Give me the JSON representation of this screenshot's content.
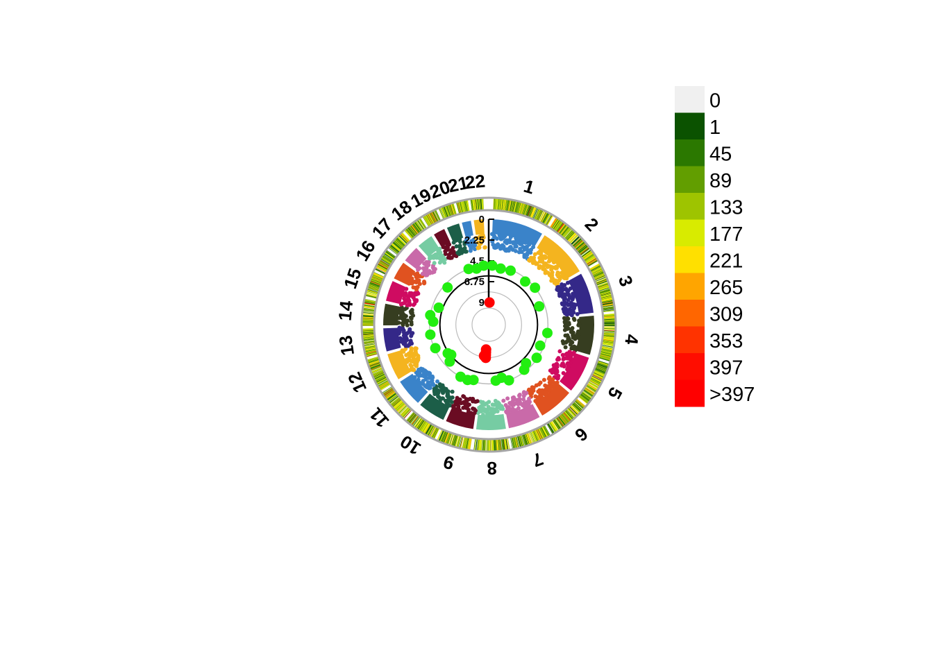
{
  "chart_data": {
    "type": "circular-manhattan",
    "chromosomes": [
      "1",
      "2",
      "3",
      "4",
      "5",
      "6",
      "7",
      "8",
      "9",
      "10",
      "11",
      "12",
      "13",
      "14",
      "15",
      "16",
      "17",
      "18",
      "19",
      "20",
      "21",
      "22"
    ],
    "chromosome_sizes": [
      249,
      243,
      198,
      191,
      181,
      171,
      159,
      145,
      138,
      134,
      135,
      133,
      114,
      107,
      102,
      90,
      83,
      80,
      59,
      64,
      47,
      51
    ],
    "chromosome_colors": [
      "#3a83c9",
      "#f4b41f",
      "#342888",
      "#363d20",
      "#cf0b61",
      "#e05220",
      "#c96aa9",
      "#76ccA3",
      "#6a0c23",
      "#1c5e48",
      "#3a83c9",
      "#f4b41f",
      "#342888",
      "#363d20",
      "#cf0b61",
      "#e05220",
      "#c96aa9",
      "#76cca3",
      "#6a0c23",
      "#1c5e48",
      "#3a83c9",
      "#f4b41f"
    ],
    "y_axis": {
      "ticks": [
        "0",
        "2.25",
        "4.5",
        "6.75",
        "9"
      ],
      "values": [
        0,
        2.25,
        4.5,
        6.75,
        9
      ],
      "range": [
        0,
        9
      ],
      "inverted": true
    },
    "threshold_lines": [
      5,
      8
    ],
    "highlight_points": [
      {
        "chr": 1,
        "pos": 0.05,
        "y": 5.0
      },
      {
        "chr": 1,
        "pos": 0.35,
        "y": 5.2
      },
      {
        "chr": 1,
        "pos": 0.7,
        "y": 5.1
      },
      {
        "chr": 2,
        "pos": 0.3,
        "y": 5.3
      },
      {
        "chr": 2,
        "pos": 0.7,
        "y": 5.0
      },
      {
        "chr": 3,
        "pos": 0.4,
        "y": 5.6
      },
      {
        "chr": 4,
        "pos": 0.6,
        "y": 5.0
      },
      {
        "chr": 5,
        "pos": 0.2,
        "y": 5.4
      },
      {
        "chr": 5,
        "pos": 0.8,
        "y": 5.1
      },
      {
        "chr": 6,
        "pos": 0.3,
        "y": 5.6
      },
      {
        "chr": 6,
        "pos": 0.6,
        "y": 5.2
      },
      {
        "chr": 7,
        "pos": 0.5,
        "y": 5.0
      },
      {
        "chr": 7,
        "pos": 0.85,
        "y": 5.5
      },
      {
        "chr": 8,
        "pos": 0.15,
        "y": 5.3
      },
      {
        "chr": 9,
        "pos": 0.45,
        "y": 5.2
      },
      {
        "chr": 9,
        "pos": 0.8,
        "y": 5.0
      },
      {
        "chr": 10,
        "pos": 0.2,
        "y": 5.0
      },
      {
        "chr": 11,
        "pos": 0.3,
        "y": 5.6
      },
      {
        "chr": 11,
        "pos": 0.6,
        "y": 6.2
      },
      {
        "chr": 11,
        "pos": 0.85,
        "y": 6.0
      },
      {
        "chr": 12,
        "pos": 0.5,
        "y": 5.1
      },
      {
        "chr": 13,
        "pos": 0.4,
        "y": 5.0
      },
      {
        "chr": 14,
        "pos": 0.3,
        "y": 5.4
      },
      {
        "chr": 14,
        "pos": 0.8,
        "y": 5.0
      },
      {
        "chr": 15,
        "pos": 0.5,
        "y": 5.7
      },
      {
        "chr": 17,
        "pos": 0.5,
        "y": 5.4
      },
      {
        "chr": 20,
        "pos": 0.5,
        "y": 5.0
      },
      {
        "chr": 21,
        "pos": 0.5,
        "y": 5.2
      },
      {
        "chr": 22,
        "pos": 0.6,
        "y": 5.0
      }
    ],
    "significant_points": [
      {
        "chr": 1,
        "pos": 0.0,
        "y": 9.0
      },
      {
        "chr": 8,
        "pos": 0.88,
        "y": 7.8
      },
      {
        "chr": 8,
        "pos": 0.9,
        "y": 8.1
      },
      {
        "chr": 8,
        "pos": 0.92,
        "y": 8.4
      },
      {
        "chr": 8,
        "pos": 0.94,
        "y": 8.7
      },
      {
        "chr": 9,
        "pos": 0.02,
        "y": 8.0
      }
    ],
    "colors": {
      "highlight": "#22ee11",
      "significant": "#ff0000",
      "band_border": "#a6a6a6",
      "guide_ring": "#bbbbbb"
    },
    "density_legend": {
      "labels": [
        "0",
        "1",
        "45",
        "89",
        "133",
        "177",
        "221",
        "265",
        "309",
        "353",
        "397",
        ">397"
      ],
      "colors": [
        "#f0f0f0",
        "#0b5200",
        "#2b7800",
        "#629e00",
        "#9ec400",
        "#d8eb00",
        "#ffe000",
        "#ffa500",
        "#ff6600",
        "#ff3300",
        "#ff0d00",
        "#ff0000"
      ],
      "placement": "right"
    }
  }
}
